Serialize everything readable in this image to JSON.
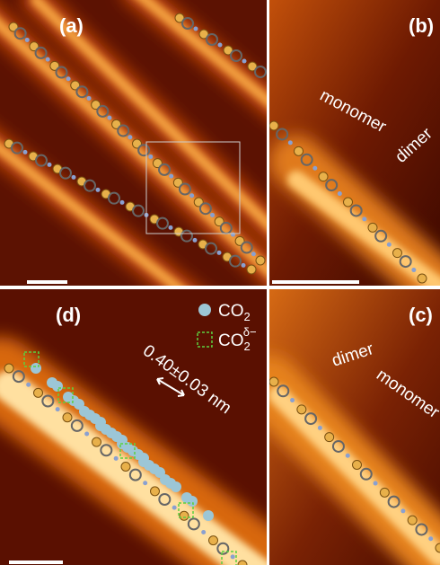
{
  "panels": [
    {
      "label": "(a)"
    },
    {
      "label": "(b)",
      "annotations": [
        "monomer",
        "dimer"
      ]
    },
    {
      "label": "(c)",
      "annotations": [
        "dimer",
        "monomer"
      ]
    },
    {
      "label": "(d)",
      "legend": [
        {
          "text": "CO",
          "sub": "2"
        },
        {
          "text": "CO",
          "sub": "2",
          "sup": "δ−"
        }
      ],
      "measurement": "0.40±0.03 nm"
    }
  ]
}
